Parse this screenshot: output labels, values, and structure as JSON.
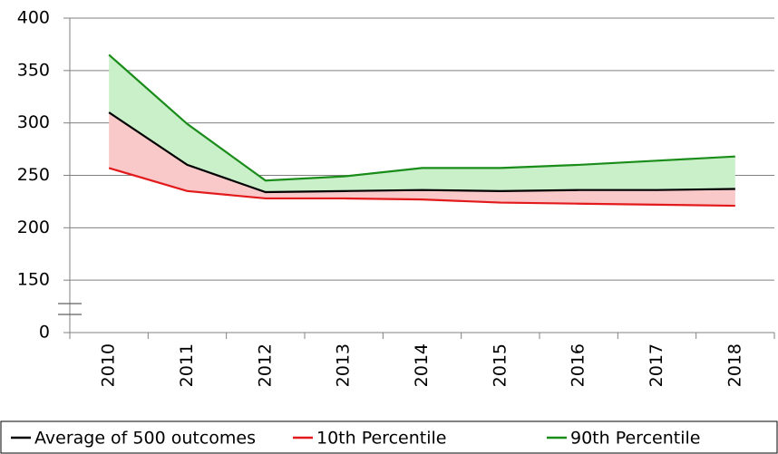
{
  "chart_data": {
    "type": "line",
    "categories": [
      "2010",
      "2011",
      "2012",
      "2013",
      "2014",
      "2015",
      "2016",
      "2017",
      "2018"
    ],
    "series": [
      {
        "name": "Average of 500 outcomes",
        "color": "#000000",
        "values": [
          310,
          260,
          234,
          235,
          236,
          235,
          236,
          236,
          237
        ]
      },
      {
        "name": "10th Percentile",
        "color": "#e31a1c",
        "values": [
          257,
          235,
          228,
          228,
          227,
          224,
          223,
          222,
          221
        ]
      },
      {
        "name": "90th Percentile",
        "color": "#1a8c1a",
        "values": [
          365,
          299,
          245,
          249,
          257,
          257,
          260,
          264,
          268
        ]
      }
    ],
    "fills": [
      {
        "between": [
          1,
          0
        ],
        "color": "#f9c8c8"
      },
      {
        "between": [
          0,
          2
        ],
        "color": "#c9f0c9"
      }
    ],
    "ylim": [
      0,
      400
    ],
    "yticks": [
      0,
      150,
      200,
      250,
      300,
      350,
      400
    ],
    "axis_break": true,
    "grid": true,
    "legend": "bottom"
  }
}
